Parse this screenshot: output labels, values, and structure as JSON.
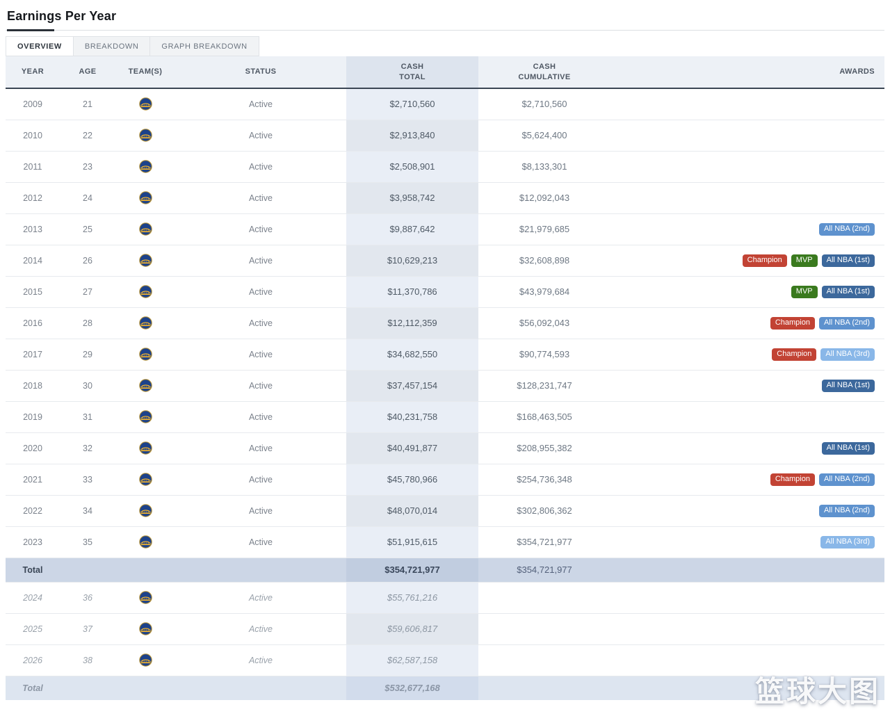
{
  "header": {
    "title": "Earnings Per Year"
  },
  "tabs": [
    {
      "label": "OVERVIEW",
      "active": true
    },
    {
      "label": "BREAKDOWN",
      "active": false
    },
    {
      "label": "GRAPH BREAKDOWN",
      "active": false
    }
  ],
  "badge_colors": {
    "champion": "#c24334",
    "mvp": "#3a7a1e",
    "all-nba-1st": "#3c689c",
    "all-nba-2nd": "#5e92ce",
    "all-nba-3rd": "#89b7e8"
  },
  "table": {
    "columns": [
      "YEAR",
      "AGE",
      "TEAM(S)",
      "STATUS",
      "CASH\nTOTAL",
      "CASH\nCUMULATIVE",
      "AWARDS"
    ],
    "team_icon": "golden-state-warriors-logo",
    "rows": [
      {
        "year": "2009",
        "age": "21",
        "team": "GSW",
        "status": "Active",
        "cash_total": "$2,710,560",
        "cash_cumulative": "$2,710,560",
        "awards": []
      },
      {
        "year": "2010",
        "age": "22",
        "team": "GSW",
        "status": "Active",
        "cash_total": "$2,913,840",
        "cash_cumulative": "$5,624,400",
        "awards": []
      },
      {
        "year": "2011",
        "age": "23",
        "team": "GSW",
        "status": "Active",
        "cash_total": "$2,508,901",
        "cash_cumulative": "$8,133,301",
        "awards": []
      },
      {
        "year": "2012",
        "age": "24",
        "team": "GSW",
        "status": "Active",
        "cash_total": "$3,958,742",
        "cash_cumulative": "$12,092,043",
        "awards": []
      },
      {
        "year": "2013",
        "age": "25",
        "team": "GSW",
        "status": "Active",
        "cash_total": "$9,887,642",
        "cash_cumulative": "$21,979,685",
        "awards": [
          {
            "label": "All NBA (2nd)",
            "type": "all-nba-2nd"
          }
        ]
      },
      {
        "year": "2014",
        "age": "26",
        "team": "GSW",
        "status": "Active",
        "cash_total": "$10,629,213",
        "cash_cumulative": "$32,608,898",
        "awards": [
          {
            "label": "Champion",
            "type": "champion"
          },
          {
            "label": "MVP",
            "type": "mvp"
          },
          {
            "label": "All NBA (1st)",
            "type": "all-nba-1st"
          }
        ]
      },
      {
        "year": "2015",
        "age": "27",
        "team": "GSW",
        "status": "Active",
        "cash_total": "$11,370,786",
        "cash_cumulative": "$43,979,684",
        "awards": [
          {
            "label": "MVP",
            "type": "mvp"
          },
          {
            "label": "All NBA (1st)",
            "type": "all-nba-1st"
          }
        ]
      },
      {
        "year": "2016",
        "age": "28",
        "team": "GSW",
        "status": "Active",
        "cash_total": "$12,112,359",
        "cash_cumulative": "$56,092,043",
        "awards": [
          {
            "label": "Champion",
            "type": "champion"
          },
          {
            "label": "All NBA (2nd)",
            "type": "all-nba-2nd"
          }
        ]
      },
      {
        "year": "2017",
        "age": "29",
        "team": "GSW",
        "status": "Active",
        "cash_total": "$34,682,550",
        "cash_cumulative": "$90,774,593",
        "awards": [
          {
            "label": "Champion",
            "type": "champion"
          },
          {
            "label": "All NBA (3rd)",
            "type": "all-nba-3rd"
          }
        ]
      },
      {
        "year": "2018",
        "age": "30",
        "team": "GSW",
        "status": "Active",
        "cash_total": "$37,457,154",
        "cash_cumulative": "$128,231,747",
        "awards": [
          {
            "label": "All NBA (1st)",
            "type": "all-nba-1st"
          }
        ]
      },
      {
        "year": "2019",
        "age": "31",
        "team": "GSW",
        "status": "Active",
        "cash_total": "$40,231,758",
        "cash_cumulative": "$168,463,505",
        "awards": []
      },
      {
        "year": "2020",
        "age": "32",
        "team": "GSW",
        "status": "Active",
        "cash_total": "$40,491,877",
        "cash_cumulative": "$208,955,382",
        "awards": [
          {
            "label": "All NBA (1st)",
            "type": "all-nba-1st"
          }
        ]
      },
      {
        "year": "2021",
        "age": "33",
        "team": "GSW",
        "status": "Active",
        "cash_total": "$45,780,966",
        "cash_cumulative": "$254,736,348",
        "awards": [
          {
            "label": "Champion",
            "type": "champion"
          },
          {
            "label": "All NBA (2nd)",
            "type": "all-nba-2nd"
          }
        ]
      },
      {
        "year": "2022",
        "age": "34",
        "team": "GSW",
        "status": "Active",
        "cash_total": "$48,070,014",
        "cash_cumulative": "$302,806,362",
        "awards": [
          {
            "label": "All NBA (2nd)",
            "type": "all-nba-2nd"
          }
        ]
      },
      {
        "year": "2023",
        "age": "35",
        "team": "GSW",
        "status": "Active",
        "cash_total": "$51,915,615",
        "cash_cumulative": "$354,721,977",
        "awards": [
          {
            "label": "All NBA (3rd)",
            "type": "all-nba-3rd"
          }
        ]
      }
    ],
    "total_row": {
      "label": "Total",
      "cash_total": "$354,721,977",
      "cash_cumulative": "$354,721,977"
    },
    "future_rows": [
      {
        "year": "2024",
        "age": "36",
        "team": "GSW",
        "status": "Active",
        "cash_total": "$55,761,216",
        "cash_cumulative": "",
        "awards": []
      },
      {
        "year": "2025",
        "age": "37",
        "team": "GSW",
        "status": "Active",
        "cash_total": "$59,606,817",
        "cash_cumulative": "",
        "awards": []
      },
      {
        "year": "2026",
        "age": "38",
        "team": "GSW",
        "status": "Active",
        "cash_total": "$62,587,158",
        "cash_cumulative": "",
        "awards": []
      }
    ],
    "future_total_row": {
      "label": "Total",
      "cash_total": "$532,677,168",
      "cash_cumulative": ""
    }
  },
  "watermark": {
    "text": "篮球大图"
  }
}
